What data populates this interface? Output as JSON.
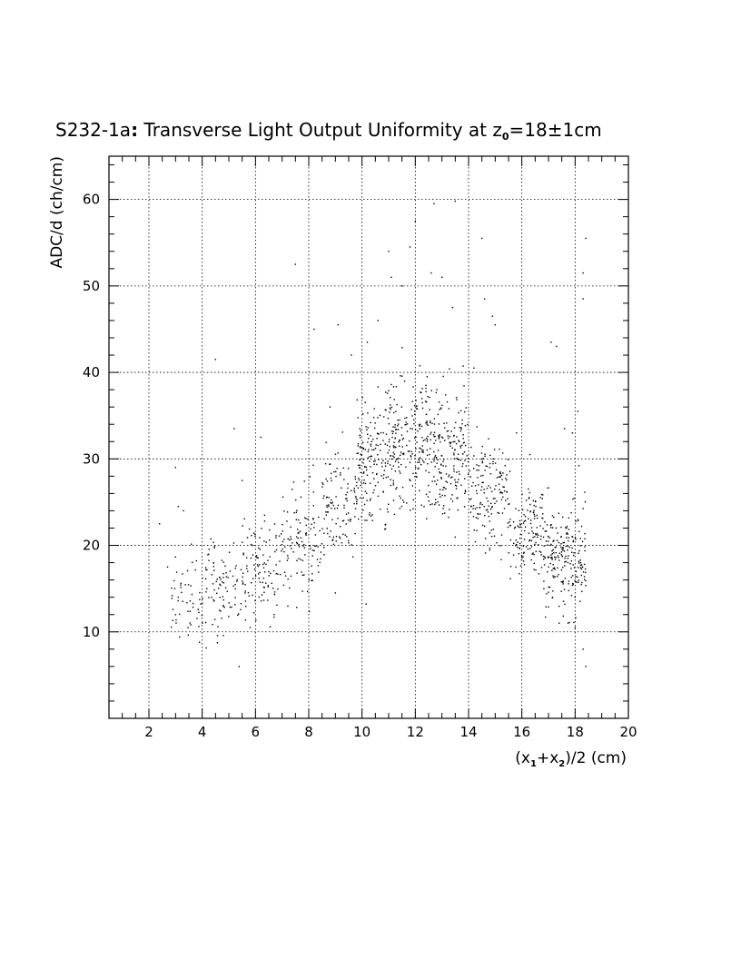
{
  "chart_data": {
    "type": "scatter",
    "title_prefix": "S232-1a",
    "title_colon": ":",
    "title_main": " Transverse Light Output Uniformity at z",
    "title_sub": "0",
    "title_tail": "=18±1cm",
    "xlabel": "(x1+x2)/2 (cm)",
    "xlabel_parts": {
      "a": "(x",
      "s1": "1",
      "b": "+x",
      "s2": "2",
      "c": ")/2 (cm)"
    },
    "ylabel": "ADC/d (ch/cm)",
    "xlim": [
      0.5,
      20.0
    ],
    "ylim": [
      0.0,
      65.0
    ],
    "x_ticks": [
      2,
      4,
      6,
      8,
      10,
      12,
      14,
      16,
      18,
      20
    ],
    "x_tick_labels": [
      "2",
      "4",
      "6",
      "8",
      "10",
      "12",
      "14",
      "16",
      "18",
      "20"
    ],
    "y_ticks": [
      10,
      20,
      30,
      40,
      50,
      60
    ],
    "y_tick_labels": [
      "10",
      "20",
      "30",
      "40",
      "50",
      "60"
    ],
    "grid": true,
    "grid_style": "dotted",
    "marker_color": "#000000",
    "clusters": [
      {
        "x_range": [
          2.8,
          4.0
        ],
        "y_mean": 14,
        "y_sd": 2.6,
        "count": 50
      },
      {
        "x_range": [
          4.0,
          5.5
        ],
        "y_mean": 15.5,
        "y_sd": 2.8,
        "count": 90
      },
      {
        "x_range": [
          5.5,
          7.0
        ],
        "y_mean": 17.5,
        "y_sd": 3.0,
        "count": 110
      },
      {
        "x_range": [
          7.0,
          8.5
        ],
        "y_mean": 20.5,
        "y_sd": 3.0,
        "count": 110
      },
      {
        "x_range": [
          8.5,
          9.8
        ],
        "y_mean": 24.5,
        "y_sd": 3.2,
        "count": 110
      },
      {
        "x_range": [
          9.8,
          11.0
        ],
        "y_mean": 30,
        "y_sd": 3.5,
        "count": 160
      },
      {
        "x_range": [
          11.0,
          12.5
        ],
        "y_mean": 32,
        "y_sd": 3.8,
        "count": 210
      },
      {
        "x_range": [
          12.5,
          14.0
        ],
        "y_mean": 30.5,
        "y_sd": 3.6,
        "count": 200
      },
      {
        "x_range": [
          14.0,
          15.5
        ],
        "y_mean": 26,
        "y_sd": 3.0,
        "count": 150
      },
      {
        "x_range": [
          15.5,
          16.8
        ],
        "y_mean": 21.5,
        "y_sd": 2.8,
        "count": 130
      },
      {
        "x_range": [
          16.8,
          18.4
        ],
        "y_mean": 18.5,
        "y_sd": 2.8,
        "count": 220
      }
    ],
    "outliers": [
      [
        2.4,
        22.5
      ],
      [
        2.7,
        17.5
      ],
      [
        3.0,
        29.0
      ],
      [
        3.1,
        24.5
      ],
      [
        3.3,
        24.0
      ],
      [
        4.5,
        41.5
      ],
      [
        5.2,
        33.5
      ],
      [
        5.5,
        27.5
      ],
      [
        6.2,
        32.5
      ],
      [
        7.5,
        52.5
      ],
      [
        8.2,
        45.0
      ],
      [
        8.8,
        36.0
      ],
      [
        9.1,
        45.5
      ],
      [
        9.6,
        42.0
      ],
      [
        10.2,
        43.5
      ],
      [
        10.6,
        46.0
      ],
      [
        11.1,
        51.0
      ],
      [
        11.0,
        54.0
      ],
      [
        11.5,
        50.0
      ],
      [
        11.8,
        54.5
      ],
      [
        12.0,
        57.5
      ],
      [
        12.6,
        51.5
      ],
      [
        12.7,
        59.5
      ],
      [
        13.0,
        51.0
      ],
      [
        13.4,
        47.5
      ],
      [
        14.2,
        40.5
      ],
      [
        14.5,
        55.5
      ],
      [
        14.6,
        48.5
      ],
      [
        14.9,
        46.5
      ],
      [
        15.0,
        45.5
      ],
      [
        15.8,
        33.0
      ],
      [
        16.3,
        30.5
      ],
      [
        17.1,
        43.5
      ],
      [
        17.3,
        43.0
      ],
      [
        17.6,
        33.5
      ],
      [
        17.9,
        33.0
      ],
      [
        18.1,
        35.5
      ],
      [
        18.3,
        51.5
      ],
      [
        18.3,
        48.5
      ],
      [
        18.4,
        55.5
      ],
      [
        18.3,
        8.0
      ],
      [
        18.4,
        6.0
      ],
      [
        18.0,
        10.5
      ],
      [
        3.9,
        8.8
      ],
      [
        5.8,
        10.5
      ],
      [
        13.5,
        59.8
      ],
      [
        12.4,
        38.5
      ],
      [
        9.0,
        14.5
      ],
      [
        6.7,
        12.0
      ],
      [
        17.4,
        11.0
      ]
    ]
  }
}
